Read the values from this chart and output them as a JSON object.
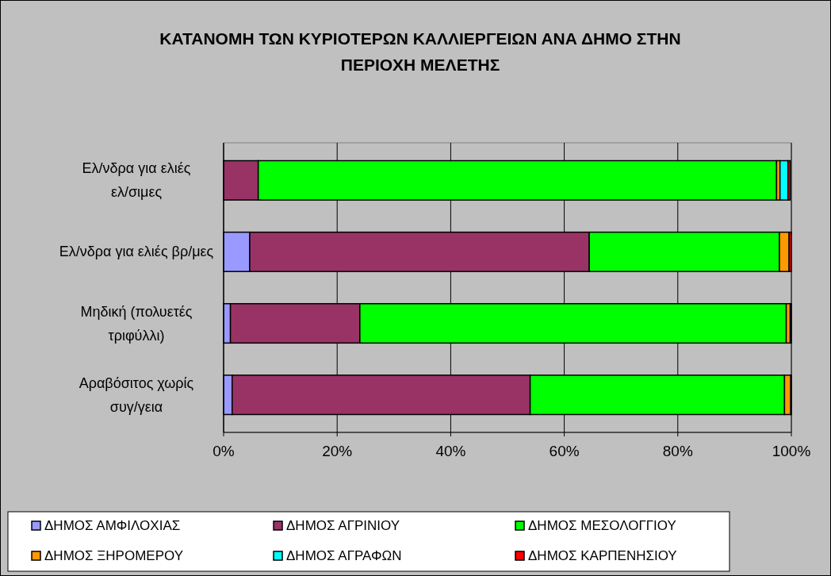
{
  "chart_data": {
    "type": "bar",
    "orientation": "horizontal",
    "stacked": true,
    "title": "ΚΑΤΑΝΟΜΗ ΤΩΝ ΚΥΡΙΟΤΕΡΩΝ ΚΑΛΛΙΕΡΓΕΙΩΝ ΑΝΑ ΔΗΜΟ ΣΤΗΝ ΠΕΡΙΟΧΗ ΜΕΛΕΤΗΣ",
    "categories": [
      "Ελ/νδρα για ελιές ελ/σιμες",
      "Ελ/νδρα για ελιές βρ/μες",
      "Μηδική (πολυετές τριφύλλι)",
      "Αραβόσιτος χωρίς συγ/γεια"
    ],
    "series": [
      {
        "name": "ΔΗΜΟΣ ΑΜΦΙΛΟΧΙΑΣ",
        "color": "#9999ff",
        "values": [
          null,
          4.6,
          1.2,
          1.5
        ]
      },
      {
        "name": "ΔΗΜΟΣ ΑΓΡΙΝΙΟΥ",
        "color": "#993366",
        "values": [
          6.1,
          59.8,
          22.8,
          52.5
        ]
      },
      {
        "name": "ΔΗΜΟΣ ΜΕΣΟΛΟΓΓΙΟΥ",
        "color": "#00ff00",
        "values": [
          91.3,
          33.5,
          75.1,
          44.8
        ]
      },
      {
        "name": "ΔΗΜΟΣ ΞΗΡΟΜΕΡΟΥ",
        "color": "#ff9900",
        "values": [
          0.6,
          1.7,
          0.7,
          1.1
        ]
      },
      {
        "name": "ΔΗΜΟΣ ΑΓΡΑΦΩΝ",
        "color": "#00ffff",
        "values": [
          1.4,
          0,
          0,
          0
        ]
      },
      {
        "name": "ΔΗΜΟΣ ΚΑΡΠΕΝΗΣΙΟΥ",
        "color": "#ff0000",
        "values": [
          0.4,
          0.4,
          0.2,
          0.1
        ]
      }
    ],
    "xlim": [
      0,
      100
    ],
    "xticks": [
      {
        "value": 0,
        "label": "0%"
      },
      {
        "value": 20,
        "label": "20%"
      },
      {
        "value": 40,
        "label": "40%"
      },
      {
        "value": 60,
        "label": "60%"
      },
      {
        "value": 80,
        "label": "80%"
      },
      {
        "value": 100,
        "label": "100%"
      }
    ],
    "grid": "x",
    "legend": "bottom"
  }
}
